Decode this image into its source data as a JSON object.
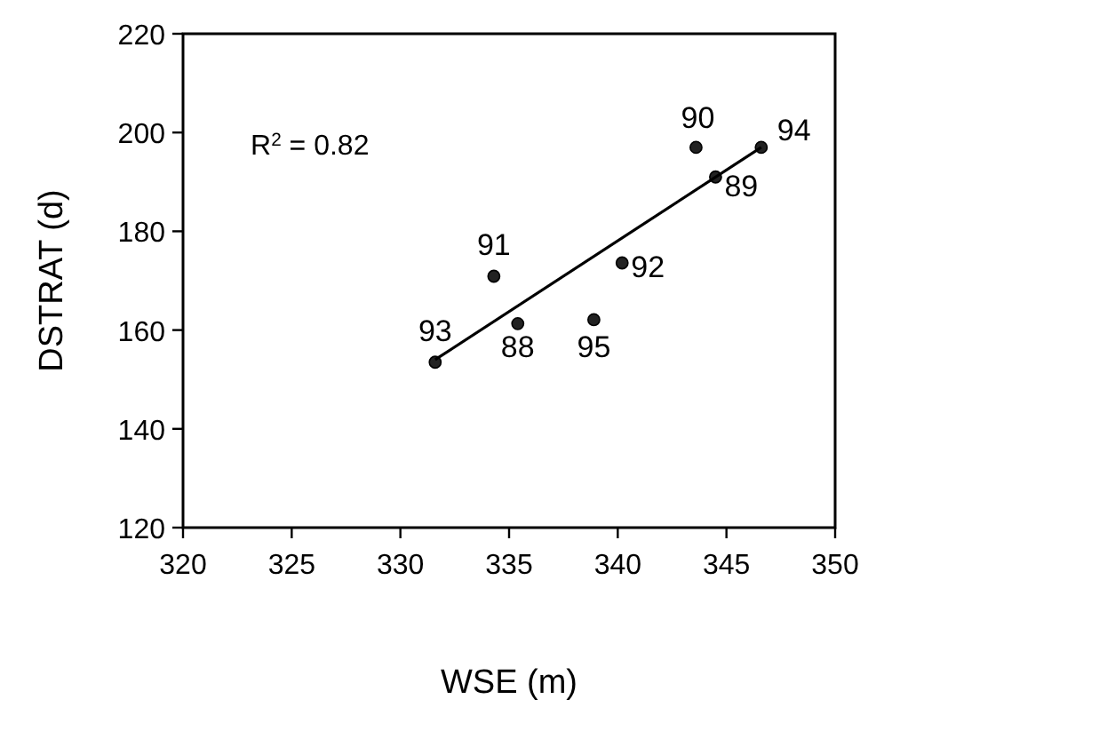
{
  "chart_data": {
    "type": "scatter",
    "xlabel": "WSE (m)",
    "ylabel": "DSTRAT (d)",
    "xlim": [
      320,
      350
    ],
    "xticks": [
      320,
      325,
      330,
      335,
      340,
      345,
      350
    ],
    "ylim": [
      120,
      220
    ],
    "yticks": [
      120,
      140,
      160,
      180,
      200,
      220
    ],
    "grid": false,
    "marker": "circle",
    "series": [
      {
        "color": "#222222",
        "x": [
          331.6,
          334.3,
          335.4,
          338.9,
          340.2,
          343.6,
          344.5,
          346.6
        ],
        "values": [
          153.5,
          170.9,
          161.3,
          162.1,
          173.6,
          197,
          191,
          197
        ]
      },
      {
        "type": "line",
        "color": "#000000",
        "line_style": "solid",
        "marker": "none",
        "x": [
          331.6,
          346.6
        ],
        "values": [
          154,
          197
        ]
      }
    ],
    "annotations": [
      "R$^{2}$ = 0.82",
      {
        "text": "93",
        "x": 331.6,
        "y": 153.5
      },
      {
        "text": "91",
        "x": 334.3,
        "y": 170.9
      },
      {
        "text": "88",
        "x": 335.4,
        "y": 161.3
      },
      {
        "text": "95",
        "x": 338.9,
        "y": 162.1
      },
      {
        "text": "92",
        "x": 340.2,
        "y": 173.6
      },
      {
        "text": "90",
        "x": 343.6,
        "y": 197
      },
      {
        "text": "89",
        "x": 344.5,
        "y": 191
      },
      {
        "text": "94",
        "x": 346.6,
        "y": 197
      }
    ]
  }
}
